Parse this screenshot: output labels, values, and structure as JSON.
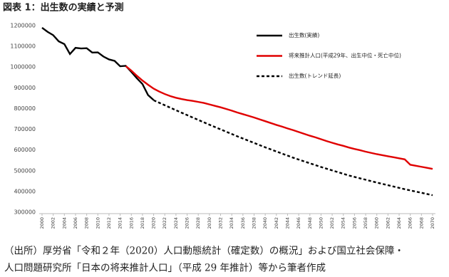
{
  "chart_data": {
    "type": "line",
    "title": "図表 1：出生数の実績と予測",
    "caption": [
      "（出所）厚労省「令和２年（2020）人口動態統計（確定数）の概況」および国立社会保障・",
      "人口問題研究所「日本の将来推計人口」（平成 29 年推計）等から筆者作成"
    ],
    "xlim": [
      2000,
      2070
    ],
    "xticks": [
      2000,
      2002,
      2004,
      2006,
      2008,
      2010,
      2012,
      2014,
      2016,
      2018,
      2020,
      2022,
      2024,
      2026,
      2028,
      2030,
      2032,
      2034,
      2036,
      2038,
      2040,
      2042,
      2044,
      2046,
      2048,
      2050,
      2052,
      2054,
      2056,
      2058,
      2060,
      2062,
      2064,
      2066,
      2068,
      2070
    ],
    "ylim": [
      300000,
      1200000
    ],
    "yticks": [
      300000,
      400000,
      500000,
      600000,
      700000,
      800000,
      900000,
      1000000,
      1100000,
      1200000
    ],
    "grid": false,
    "legend": "top-right",
    "series": [
      {
        "name": "出生数(実績)",
        "color": "#000000",
        "dashed": false,
        "x": [
          2000,
          2001,
          2002,
          2003,
          2004,
          2005,
          2006,
          2007,
          2008,
          2009,
          2010,
          2011,
          2012,
          2013,
          2014,
          2015,
          2016,
          2017,
          2018,
          2019,
          2020
        ],
        "values": [
          1190000,
          1170000,
          1154000,
          1124000,
          1111000,
          1063000,
          1093000,
          1090000,
          1091000,
          1070000,
          1071000,
          1051000,
          1037000,
          1030000,
          1004000,
          1006000,
          977000,
          946000,
          918000,
          865000,
          841000
        ]
      },
      {
        "name": "将来推計人口(平成29年、出生中位・死亡中位)",
        "color": "#e00000",
        "dashed": false,
        "x": [
          2015,
          2016,
          2017,
          2018,
          2019,
          2020,
          2021,
          2022,
          2023,
          2024,
          2025,
          2026,
          2027,
          2028,
          2029,
          2030,
          2031,
          2032,
          2033,
          2034,
          2035,
          2036,
          2037,
          2038,
          2039,
          2040,
          2041,
          2042,
          2043,
          2044,
          2045,
          2046,
          2047,
          2048,
          2049,
          2050,
          2051,
          2052,
          2053,
          2054,
          2055,
          2056,
          2057,
          2058,
          2059,
          2060,
          2061,
          2062,
          2063,
          2064,
          2065,
          2066,
          2067,
          2068,
          2069,
          2070
        ],
        "values": [
          1005000,
          983000,
          958000,
          935000,
          915000,
          896000,
          882000,
          870000,
          860000,
          852000,
          846000,
          841000,
          837000,
          832000,
          827000,
          820000,
          813000,
          806000,
          798000,
          790000,
          781000,
          773000,
          765000,
          757000,
          748000,
          739000,
          730000,
          721000,
          713000,
          704000,
          696000,
          687000,
          678000,
          669000,
          661000,
          652000,
          643000,
          635000,
          627000,
          620000,
          612000,
          605000,
          599000,
          592000,
          586000,
          580000,
          575000,
          570000,
          565000,
          560000,
          555000,
          529000,
          524000,
          519000,
          514000,
          509000
        ]
      },
      {
        "name": "出生数(トレンド延長)",
        "color": "#000000",
        "dashed": true,
        "x": [
          2020,
          2025,
          2030,
          2035,
          2040,
          2045,
          2050,
          2055,
          2060,
          2065,
          2070
        ],
        "values": [
          840000,
          780000,
          722000,
          666000,
          613000,
          563000,
          518000,
          477000,
          443000,
          411000,
          382000
        ]
      }
    ]
  }
}
